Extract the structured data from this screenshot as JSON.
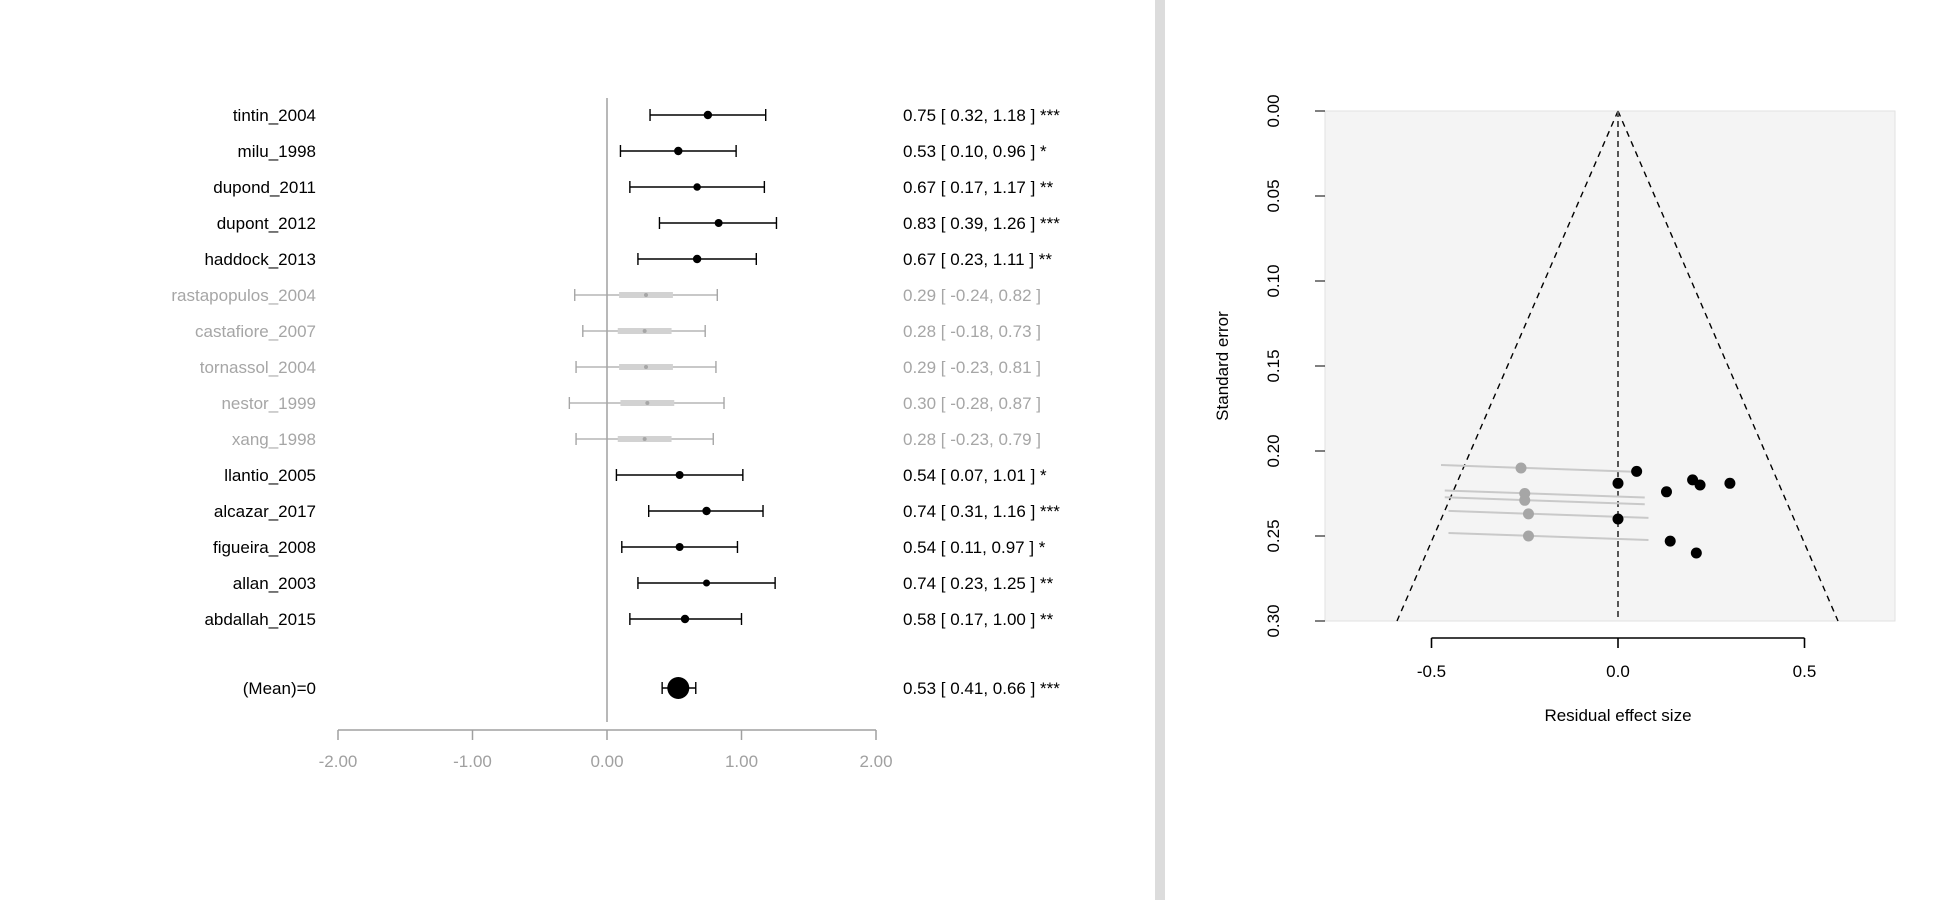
{
  "forest": {
    "axis_ticks": [
      "-2.00",
      "-1.00",
      "0.00",
      "1.00",
      "2.00"
    ],
    "studies": [
      {
        "name": "tintin_2004",
        "est": 0.75,
        "lo": 0.32,
        "hi": 1.18,
        "sig": "***",
        "text": "0.75 [  0.32,  1.18 ] ***",
        "excluded": false,
        "weight": 1.0
      },
      {
        "name": "milu_1998",
        "est": 0.53,
        "lo": 0.1,
        "hi": 0.96,
        "sig": "*",
        "text": "0.53 [  0.10,  0.96 ] *",
        "excluded": false,
        "weight": 1.0
      },
      {
        "name": "dupond_2011",
        "est": 0.67,
        "lo": 0.17,
        "hi": 1.17,
        "sig": "**",
        "text": "0.67 [  0.17,  1.17 ] **",
        "excluded": false,
        "weight": 0.8
      },
      {
        "name": "dupont_2012",
        "est": 0.83,
        "lo": 0.39,
        "hi": 1.26,
        "sig": "***",
        "text": "0.83 [  0.39,  1.26 ] ***",
        "excluded": false,
        "weight": 0.9
      },
      {
        "name": "haddock_2013",
        "est": 0.67,
        "lo": 0.23,
        "hi": 1.11,
        "sig": "**",
        "text": "0.67 [  0.23,  1.11 ] **",
        "excluded": false,
        "weight": 1.0
      },
      {
        "name": "rastapopulos_2004",
        "est": 0.29,
        "lo": -0.24,
        "hi": 0.82,
        "sig": "",
        "text": "0.29 [ -0.24,  0.82 ]",
        "excluded": true,
        "weight": 0.6
      },
      {
        "name": "castafiore_2007",
        "est": 0.28,
        "lo": -0.18,
        "hi": 0.73,
        "sig": "",
        "text": "0.28 [ -0.18,  0.73 ]",
        "excluded": true,
        "weight": 0.7
      },
      {
        "name": "tornassol_2004",
        "est": 0.29,
        "lo": -0.23,
        "hi": 0.81,
        "sig": "",
        "text": "0.29 [ -0.23,  0.81 ]",
        "excluded": true,
        "weight": 0.6
      },
      {
        "name": "nestor_1999",
        "est": 0.3,
        "lo": -0.28,
        "hi": 0.87,
        "sig": "",
        "text": "0.30 [ -0.28,  0.87 ]",
        "excluded": true,
        "weight": 0.5
      },
      {
        "name": "xang_1998",
        "est": 0.28,
        "lo": -0.23,
        "hi": 0.79,
        "sig": "",
        "text": "0.28 [ -0.23,  0.79 ]",
        "excluded": true,
        "weight": 0.6
      },
      {
        "name": "llantio_2005",
        "est": 0.54,
        "lo": 0.07,
        "hi": 1.01,
        "sig": "*",
        "text": "0.54 [  0.07,  1.01 ] *",
        "excluded": false,
        "weight": 0.9
      },
      {
        "name": "alcazar_2017",
        "est": 0.74,
        "lo": 0.31,
        "hi": 1.16,
        "sig": "***",
        "text": "0.74 [  0.31,  1.16 ] ***",
        "excluded": false,
        "weight": 1.0
      },
      {
        "name": "figueira_2008",
        "est": 0.54,
        "lo": 0.11,
        "hi": 0.97,
        "sig": "*",
        "text": "0.54 [  0.11,  0.97 ] *",
        "excluded": false,
        "weight": 0.9
      },
      {
        "name": "allan_2003",
        "est": 0.74,
        "lo": 0.23,
        "hi": 1.25,
        "sig": "**",
        "text": "0.74 [  0.23,  1.25 ] **",
        "excluded": false,
        "weight": 0.7
      },
      {
        "name": "abdallah_2015",
        "est": 0.58,
        "lo": 0.17,
        "hi": 1.0,
        "sig": "**",
        "text": "0.58 [  0.17,  1.00 ] **",
        "excluded": false,
        "weight": 1.0
      }
    ],
    "mean": {
      "name": "(Mean)=0",
      "est": 0.53,
      "lo": 0.41,
      "hi": 0.66,
      "sig": "***",
      "text": "0.53 [  0.41,  0.66 ] ***"
    }
  },
  "funnel": {
    "ylabel": "Standard error",
    "xlabel": "Residual effect size",
    "y_ticks": [
      "0.00",
      "0.05",
      "0.10",
      "0.15",
      "0.20",
      "0.25",
      "0.30"
    ],
    "x_ticks": [
      "-0.5",
      "0.0",
      "0.5"
    ]
  },
  "colors": {
    "included": "#000000",
    "excluded": "#a6a6a6",
    "axis_grey": "#a0a0a0",
    "funnel_bg": "#f4f4f4"
  },
  "chart_data": [
    {
      "type": "forest",
      "categories": [
        "tintin_2004",
        "milu_1998",
        "dupond_2011",
        "dupont_2012",
        "haddock_2013",
        "rastapopulos_2004",
        "castafiore_2007",
        "tornassol_2004",
        "nestor_1999",
        "xang_1998",
        "llantio_2005",
        "alcazar_2017",
        "figueira_2008",
        "allan_2003",
        "abdallah_2015",
        "(Mean)=0"
      ],
      "estimate": [
        0.75,
        0.53,
        0.67,
        0.83,
        0.67,
        0.29,
        0.28,
        0.29,
        0.3,
        0.28,
        0.54,
        0.74,
        0.54,
        0.74,
        0.58,
        0.53
      ],
      "ci_lower": [
        0.32,
        0.1,
        0.17,
        0.39,
        0.23,
        -0.24,
        -0.18,
        -0.23,
        -0.28,
        -0.23,
        0.07,
        0.31,
        0.11,
        0.23,
        0.17,
        0.41
      ],
      "ci_upper": [
        1.18,
        0.96,
        1.17,
        1.26,
        1.11,
        0.82,
        0.73,
        0.81,
        0.87,
        0.79,
        1.01,
        1.16,
        0.97,
        1.25,
        1.0,
        0.66
      ],
      "xlim": [
        -2,
        2
      ],
      "title": "",
      "xlabel": "",
      "ylabel": ""
    },
    {
      "type": "scatter",
      "title": "",
      "xlabel": "Residual effect size",
      "ylabel": "Standard error",
      "xlim": [
        -0.75,
        0.75
      ],
      "ylim": [
        0.3,
        0.0
      ],
      "reference_line_x": 0,
      "series": [
        {
          "x": [
            0.05,
            0.0,
            0.2,
            0.22,
            0.3,
            0.13,
            0.0,
            0.14,
            0.21
          ],
          "y": [
            0.212,
            0.219,
            0.217,
            0.22,
            0.219,
            0.224,
            0.24,
            0.253,
            0.26
          ]
        },
        {
          "x": [
            -0.26,
            -0.25,
            -0.25,
            -0.24,
            -0.24
          ],
          "y": [
            0.21,
            0.225,
            0.229,
            0.237,
            0.25
          ]
        }
      ]
    }
  ]
}
